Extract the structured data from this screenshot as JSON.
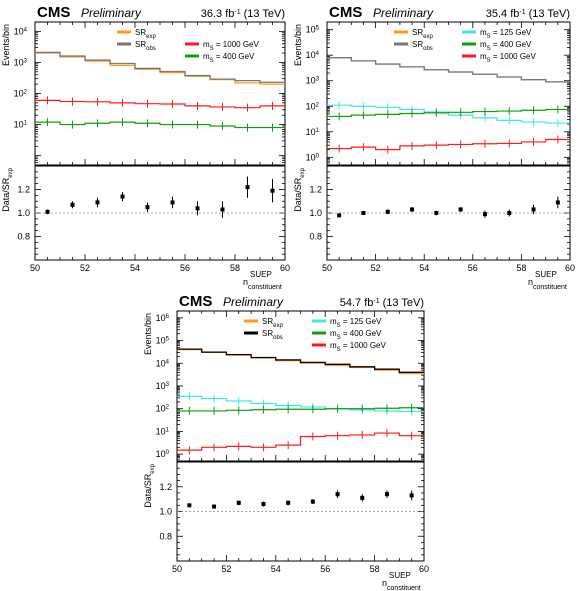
{
  "figure": {
    "background": "#ffffff",
    "colors": {
      "sr_exp": "#ff9a1a",
      "sr_obs": "#000000",
      "m125": "#3fe6ea",
      "m400": "#119c0f",
      "m1000": "#ff1a1a",
      "data": "#000000"
    }
  },
  "chart_data": [
    {
      "type": "histogram",
      "experiment": "CMS",
      "status": "Preliminary",
      "lumi": "36.3 fb",
      "lumi_unit_exp": "-1",
      "energy": "(13 TeV)",
      "xlabel_main": "n",
      "xlabel_sup": "SUEP",
      "xlabel_sub": "constituent",
      "ylabel_top": "Events/bin",
      "ylabel_ratio_main": "Data/SR",
      "ylabel_ratio_sub": "exp",
      "xlim": [
        50,
        60
      ],
      "ylim_top": [
        0.5,
        20000
      ],
      "ylim_ratio": [
        0.6,
        1.4
      ],
      "log_y": true,
      "x_ticks": [
        "50",
        "52",
        "54",
        "56",
        "58",
        "60"
      ],
      "y_ticks_top": [
        {
          "v": 10,
          "base": "10",
          "exp": "1"
        },
        {
          "v": 100,
          "base": "10",
          "exp": "2"
        },
        {
          "v": 1000,
          "base": "10",
          "exp": "3"
        },
        {
          "v": 10000,
          "base": "10",
          "exp": "4"
        }
      ],
      "y_ticks_ratio": [
        "0.8",
        "1.0",
        "1.2"
      ],
      "bins": [
        50,
        51,
        52,
        53,
        54,
        55,
        56,
        57,
        58,
        59,
        60
      ],
      "series": [
        {
          "name": "SR",
          "name_sub": "exp",
          "color": "#ff9a1a",
          "values": [
            2000,
            1500,
            1100,
            800,
            600,
            470,
            360,
            280,
            220,
            200
          ]
        },
        {
          "name": "SR",
          "name_sub": "obs",
          "color": "#777777",
          "values": [
            2100,
            1600,
            1200,
            920,
            640,
            510,
            380,
            290,
            260,
            230
          ]
        },
        {
          "name": "m",
          "name_sub": "S",
          "name_rest": " = 1000 GeV",
          "color": "#ff1a1a",
          "values": [
            60,
            55,
            54,
            50,
            47,
            46,
            40,
            37,
            35,
            40
          ]
        },
        {
          "name": "m",
          "name_sub": "S",
          "name_rest": " = 400 GeV",
          "color": "#119c0f",
          "values": [
            12,
            10,
            11,
            12,
            11,
            10,
            10,
            9,
            8,
            8
          ]
        }
      ],
      "ratio": {
        "x": [
          50.5,
          51.5,
          52.5,
          53.5,
          54.5,
          55.5,
          56.5,
          57.5,
          58.5,
          59.5
        ],
        "y": [
          1.01,
          1.07,
          1.09,
          1.14,
          1.05,
          1.09,
          1.04,
          1.03,
          1.22,
          1.19
        ],
        "err": [
          0.02,
          0.03,
          0.04,
          0.04,
          0.04,
          0.05,
          0.06,
          0.07,
          0.09,
          0.1
        ]
      }
    },
    {
      "type": "histogram",
      "experiment": "CMS",
      "status": "Preliminary",
      "lumi": "35.4 fb",
      "lumi_unit_exp": "-1",
      "energy": "(13 TeV)",
      "xlabel_main": "n",
      "xlabel_sup": "SUEP",
      "xlabel_sub": "constituent",
      "ylabel_top": "Events/bin",
      "ylabel_ratio_main": "Data/SR",
      "ylabel_ratio_sub": "exp",
      "xlim": [
        50,
        60
      ],
      "ylim_top": [
        0.5,
        200000
      ],
      "ylim_ratio": [
        0.6,
        1.4
      ],
      "log_y": true,
      "x_ticks": [
        "50",
        "52",
        "54",
        "56",
        "58",
        "60"
      ],
      "y_ticks_top": [
        {
          "v": 1,
          "base": "10",
          "exp": "0"
        },
        {
          "v": 10,
          "base": "10",
          "exp": "1"
        },
        {
          "v": 100,
          "base": "10",
          "exp": "2"
        },
        {
          "v": 1000,
          "base": "10",
          "exp": "3"
        },
        {
          "v": 10000,
          "base": "10",
          "exp": "4"
        },
        {
          "v": 100000,
          "base": "10",
          "exp": "5"
        }
      ],
      "y_ticks_ratio": [
        "0.8",
        "1.0",
        "1.2"
      ],
      "bins": [
        50,
        51,
        52,
        53,
        54,
        55,
        56,
        57,
        58,
        59,
        60
      ],
      "series": [
        {
          "name": "SR",
          "name_sub": "exp",
          "color": "#ff9a1a",
          "values": [
            8000,
            6000,
            4500,
            3500,
            2700,
            2200,
            1800,
            1400,
            1100,
            900
          ]
        },
        {
          "name": "SR",
          "name_sub": "obs",
          "color": "#777777",
          "values": [
            8000,
            6000,
            4500,
            3500,
            2700,
            2200,
            1800,
            1400,
            1100,
            900
          ]
        },
        {
          "name": "m",
          "name_sub": "S",
          "name_rest": " = 125 GeV",
          "color": "#3fe6ea",
          "values": [
            110,
            100,
            90,
            75,
            60,
            45,
            35,
            28,
            24,
            22
          ]
        },
        {
          "name": "m",
          "name_sub": "S",
          "name_rest": " = 400 GeV",
          "color": "#119c0f",
          "values": [
            40,
            45,
            48,
            52,
            55,
            58,
            62,
            65,
            70,
            75
          ]
        },
        {
          "name": "m",
          "name_sub": "S",
          "name_rest": " = 1000 GeV",
          "color": "#ff1a1a",
          "values": [
            2.2,
            2.5,
            2.0,
            2.8,
            3.0,
            3.2,
            3.4,
            3.5,
            4.0,
            5.0
          ]
        }
      ],
      "ratio": {
        "x": [
          50.5,
          51.5,
          52.5,
          53.5,
          54.5,
          55.5,
          56.5,
          57.5,
          58.5,
          59.5
        ],
        "y": [
          0.98,
          1.0,
          1.01,
          1.03,
          1.0,
          1.03,
          0.99,
          1.0,
          1.03,
          1.09
        ],
        "err": [
          0.01,
          0.01,
          0.02,
          0.02,
          0.02,
          0.02,
          0.03,
          0.03,
          0.04,
          0.05
        ]
      }
    },
    {
      "type": "histogram",
      "experiment": "CMS",
      "status": "Preliminary",
      "lumi": "54.7 fb",
      "lumi_unit_exp": "-1",
      "energy": "(13 TeV)",
      "xlabel_main": "n",
      "xlabel_sup": "SUEP",
      "xlabel_sub": "constituent",
      "ylabel_top": "Events/bin",
      "ylabel_ratio_main": "Data/SR",
      "ylabel_ratio_sub": "exp",
      "xlim": [
        50,
        60
      ],
      "ylim_top": [
        0.5,
        2000000
      ],
      "ylim_ratio": [
        0.6,
        1.4
      ],
      "log_y": true,
      "x_ticks": [
        "50",
        "52",
        "54",
        "56",
        "58",
        "60"
      ],
      "y_ticks_top": [
        {
          "v": 1,
          "base": "10",
          "exp": "0"
        },
        {
          "v": 10,
          "base": "10",
          "exp": "1"
        },
        {
          "v": 100,
          "base": "10",
          "exp": "2"
        },
        {
          "v": 1000,
          "base": "10",
          "exp": "3"
        },
        {
          "v": 10000,
          "base": "10",
          "exp": "4"
        },
        {
          "v": 100000,
          "base": "10",
          "exp": "5"
        },
        {
          "v": 1000000,
          "base": "10",
          "exp": "6"
        }
      ],
      "y_ticks_ratio": [
        "0.8",
        "1.0",
        "1.2"
      ],
      "bins": [
        50,
        51,
        52,
        53,
        54,
        55,
        56,
        57,
        58,
        59,
        60
      ],
      "series": [
        {
          "name": "SR",
          "name_sub": "exp",
          "color": "#ff9a1a",
          "values": [
            40000,
            30000,
            23000,
            17000,
            13000,
            10000,
            8000,
            6500,
            5000,
            3500
          ]
        },
        {
          "name": "SR",
          "name_sub": "obs",
          "color": "#000000",
          "values": [
            42000,
            31000,
            24000,
            18000,
            14000,
            11000,
            9000,
            7000,
            5500,
            4000
          ]
        },
        {
          "name": "m",
          "name_sub": "S",
          "name_rest": " = 125 GeV",
          "color": "#3fe6ea",
          "values": [
            350,
            280,
            220,
            170,
            140,
            120,
            100,
            90,
            80,
            75
          ]
        },
        {
          "name": "m",
          "name_sub": "S",
          "name_rest": " = 400 GeV",
          "color": "#119c0f",
          "values": [
            80,
            80,
            85,
            90,
            95,
            95,
            100,
            100,
            105,
            110
          ]
        },
        {
          "name": "m",
          "name_sub": "S",
          "name_rest": " = 1000 GeV",
          "color": "#ff1a1a",
          "values": [
            1.5,
            2.0,
            2.2,
            2.0,
            2.5,
            6.0,
            6.5,
            7.0,
            8.5,
            6.5
          ]
        }
      ],
      "ratio": {
        "x": [
          50.5,
          51.5,
          52.5,
          53.5,
          54.5,
          55.5,
          56.5,
          57.5,
          58.5,
          59.5
        ],
        "y": [
          1.05,
          1.04,
          1.07,
          1.06,
          1.07,
          1.08,
          1.14,
          1.11,
          1.14,
          1.13
        ],
        "err": [
          0.01,
          0.01,
          0.02,
          0.02,
          0.02,
          0.02,
          0.03,
          0.03,
          0.03,
          0.04
        ]
      }
    }
  ]
}
